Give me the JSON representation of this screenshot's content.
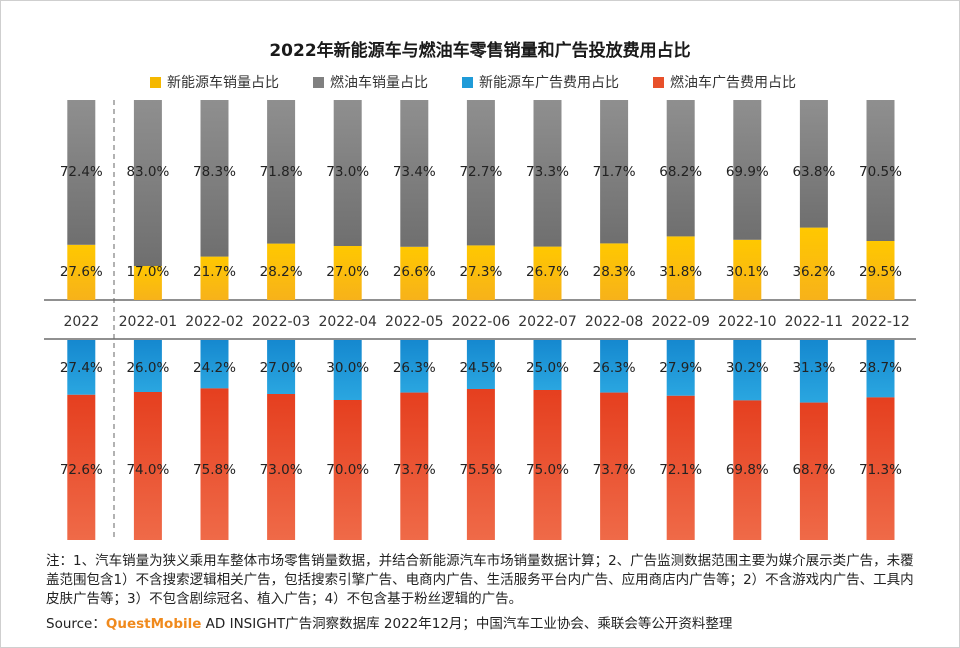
{
  "title": "2022年新能源车与燃油车零售销量和广告投放费用占比",
  "legend": [
    {
      "label": "新能源车销量占比",
      "color": "#f5b800"
    },
    {
      "label": "燃油车销量占比",
      "color": "#808080"
    },
    {
      "label": "新能源车广告费用占比",
      "color": "#1f9bd8"
    },
    {
      "label": "燃油车广告费用占比",
      "color": "#e8502a"
    }
  ],
  "chart_data": {
    "type": "bar",
    "categories": [
      "2022",
      "2022-01",
      "2022-02",
      "2022-03",
      "2022-04",
      "2022-05",
      "2022-06",
      "2022-07",
      "2022-08",
      "2022-09",
      "2022-10",
      "2022-11",
      "2022-12"
    ],
    "series": [
      {
        "name": "新能源车销量占比",
        "values": [
          27.6,
          17.0,
          21.7,
          28.2,
          27.0,
          26.6,
          27.3,
          26.7,
          28.3,
          31.8,
          30.1,
          36.2,
          29.5
        ],
        "labels": [
          "27.6%",
          "17.0%",
          "21.7%",
          "28.2%",
          "27.0%",
          "26.6%",
          "27.3%",
          "26.7%",
          "28.3%",
          "31.8%",
          "30.1%",
          "36.2%",
          "29.5%"
        ]
      },
      {
        "name": "燃油车销量占比",
        "values": [
          72.4,
          83.0,
          78.3,
          71.8,
          73.0,
          73.4,
          72.7,
          73.3,
          71.7,
          68.2,
          69.9,
          63.8,
          70.5
        ],
        "labels": [
          "72.4%",
          "83.0%",
          "78.3%",
          "71.8%",
          "73.0%",
          "73.4%",
          "72.7%",
          "73.3%",
          "71.7%",
          "68.2%",
          "69.9%",
          "63.8%",
          "70.5%"
        ]
      },
      {
        "name": "新能源车广告费用占比",
        "values": [
          27.4,
          26.0,
          24.2,
          27.0,
          30.0,
          26.3,
          24.5,
          25.0,
          26.3,
          27.9,
          30.2,
          31.3,
          28.7
        ],
        "labels": [
          "27.4%",
          "26.0%",
          "24.2%",
          "27.0%",
          "30.0%",
          "26.3%",
          "24.5%",
          "25.0%",
          "26.3%",
          "27.9%",
          "30.2%",
          "31.3%",
          "28.7%"
        ]
      },
      {
        "name": "燃油车广告费用占比",
        "values": [
          72.6,
          74.0,
          75.8,
          73.0,
          70.0,
          73.7,
          75.5,
          75.0,
          73.7,
          72.1,
          69.8,
          68.7,
          71.3
        ],
        "labels": [
          "72.6%",
          "74.0%",
          "75.8%",
          "73.0%",
          "70.0%",
          "73.7%",
          "75.5%",
          "75.0%",
          "73.7%",
          "72.1%",
          "69.8%",
          "68.7%",
          "71.3%"
        ]
      }
    ],
    "colors": {
      "nev_sales": "#f5b800",
      "fuel_sales": "#808080",
      "nev_ad": "#1f9bd8",
      "fuel_ad": "#e8502a"
    }
  },
  "notes": "注：1、汽车销量为狭义乘用车整体市场零售销量数据，并结合新能源汽车市场销量数据计算；2、广告监测数据范围主要为媒介展示类广告，未覆盖范围包含1）不含搜索逻辑相关广告，包括搜索引擎广告、电商内广告、生活服务平台内广告、应用商店内广告等；2）不含游戏内广告、工具内皮肤广告等；3）不包含剧综冠名、植入广告；4）不包含基于粉丝逻辑的广告。",
  "source": {
    "prefix": "Source：",
    "brand": "QuestMobile",
    "rest": " AD INSIGHT广告洞察数据库 2022年12月；中国汽车工业协会、乘联会等公开资料整理"
  }
}
